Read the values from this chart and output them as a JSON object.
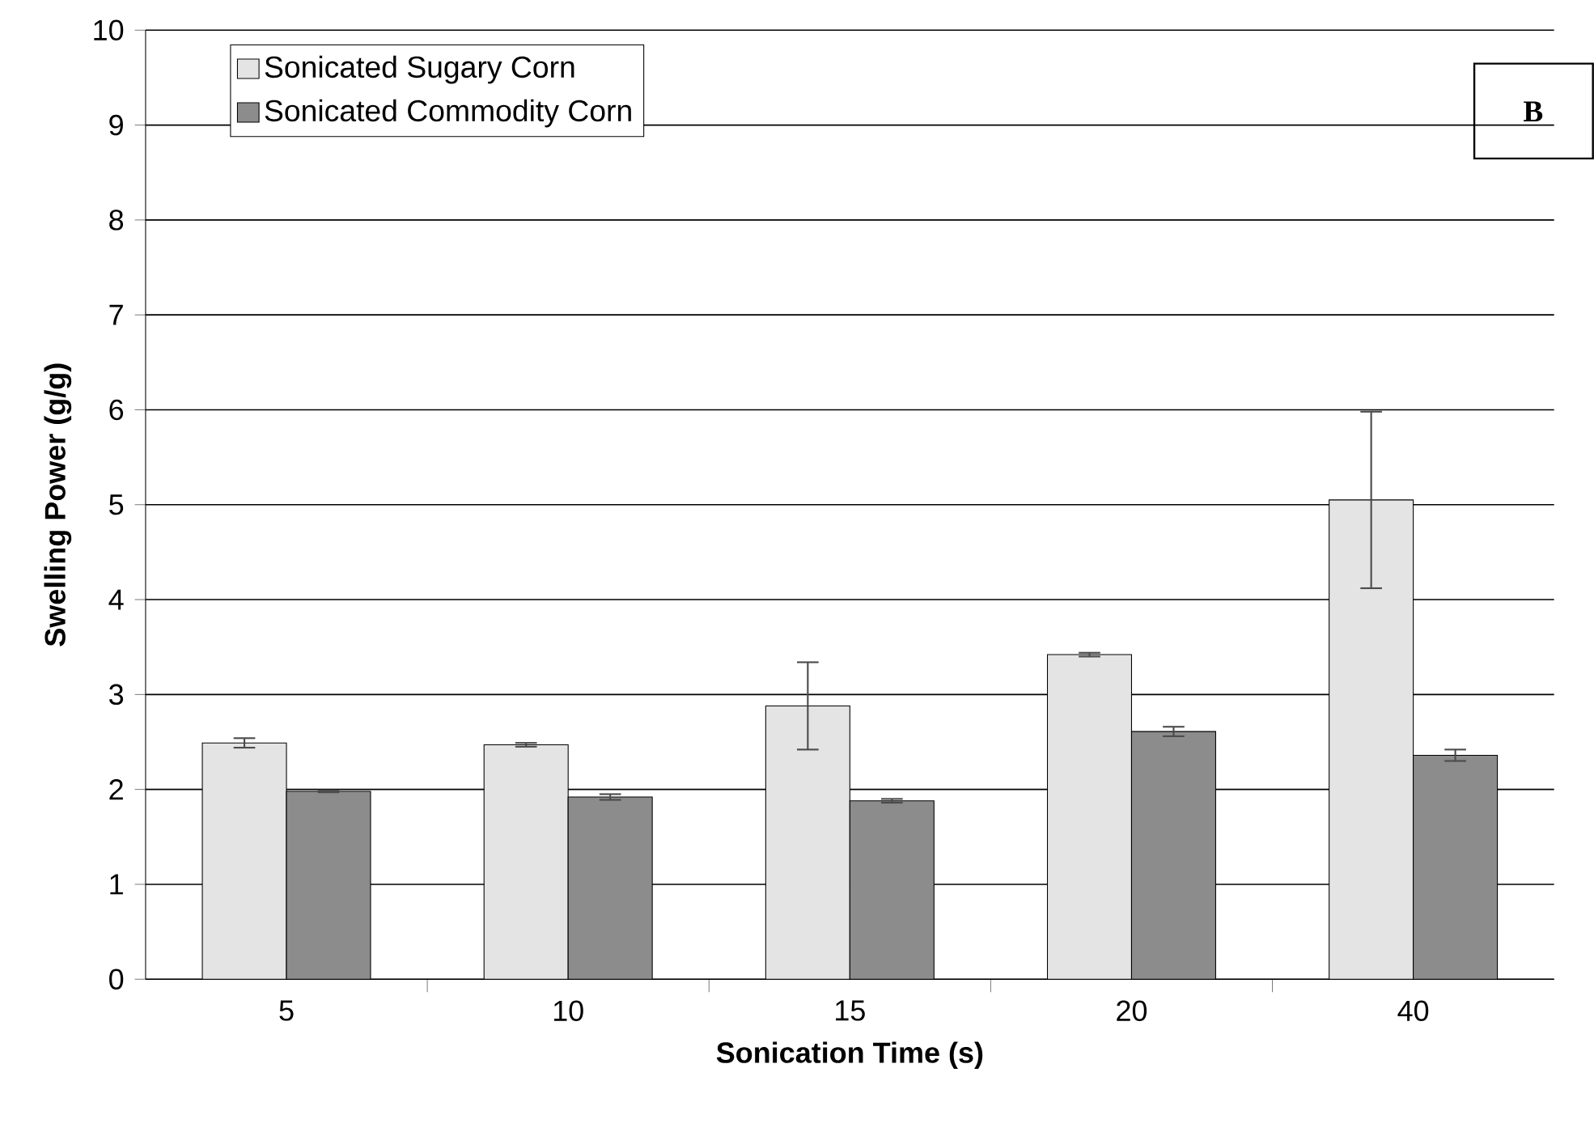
{
  "chart_data": {
    "type": "bar",
    "xlabel": "Sonication Time (s)",
    "ylabel": "Swelling Power (g/g)",
    "categories": [
      "5",
      "10",
      "15",
      "20",
      "40"
    ],
    "series": [
      {
        "name": "Sonicated Sugary Corn",
        "color": "#e4e4e4",
        "values": [
          2.49,
          2.47,
          2.88,
          3.42,
          5.05
        ],
        "errors": [
          0.05,
          0.02,
          0.46,
          0.02,
          0.93
        ]
      },
      {
        "name": "Sonicated Commodity Corn",
        "color": "#8c8c8c",
        "values": [
          1.98,
          1.92,
          1.88,
          2.61,
          2.36
        ],
        "errors": [
          0.01,
          0.03,
          0.02,
          0.05,
          0.06
        ]
      }
    ],
    "ylim": [
      0,
      10
    ],
    "yticks": [
      0,
      1,
      2,
      3,
      4,
      5,
      6,
      7,
      8,
      9,
      10
    ],
    "grid": "y",
    "legend": "top left",
    "annotations": [
      "B"
    ]
  }
}
